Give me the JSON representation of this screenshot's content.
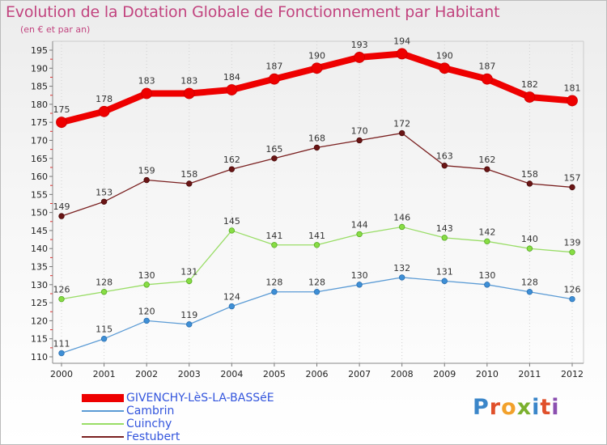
{
  "chart_data": {
    "type": "line",
    "title": "Evolution de la Dotation Globale de Fonctionnement par Habitant",
    "subtitle": "(en € et par an)",
    "xlabel": "",
    "ylabel": "",
    "x": [
      "2000",
      "2001",
      "2002",
      "2003",
      "2004",
      "2005",
      "2006",
      "2007",
      "2008",
      "2009",
      "2010",
      "2011",
      "2012"
    ],
    "ylim": [
      110,
      195
    ],
    "yticks": [
      110,
      115,
      120,
      125,
      130,
      135,
      140,
      145,
      150,
      155,
      160,
      165,
      170,
      175,
      180,
      185,
      190,
      195
    ],
    "grid": "vertical dotted",
    "legend_position": "bottom-left",
    "series": [
      {
        "name": "GIVENCHY-LèS-LA-BASSéE",
        "color": "#ee0000",
        "values": [
          175,
          178,
          183,
          183,
          184,
          187,
          190,
          193,
          194,
          190,
          187,
          182,
          181
        ]
      },
      {
        "name": "Cambrin",
        "color": "#5b9bd5",
        "values": [
          111,
          115,
          120,
          119,
          124,
          128,
          128,
          130,
          132,
          131,
          130,
          128,
          126
        ]
      },
      {
        "name": "Cuinchy",
        "color": "#99dd66",
        "values": [
          126,
          128,
          130,
          131,
          145,
          141,
          141,
          144,
          146,
          143,
          142,
          140,
          139
        ]
      },
      {
        "name": "Festubert",
        "color": "#7a2020",
        "values": [
          149,
          153,
          159,
          158,
          162,
          165,
          168,
          170,
          172,
          163,
          162,
          158,
          157
        ]
      }
    ]
  },
  "logo": {
    "text": "Proxiti"
  }
}
